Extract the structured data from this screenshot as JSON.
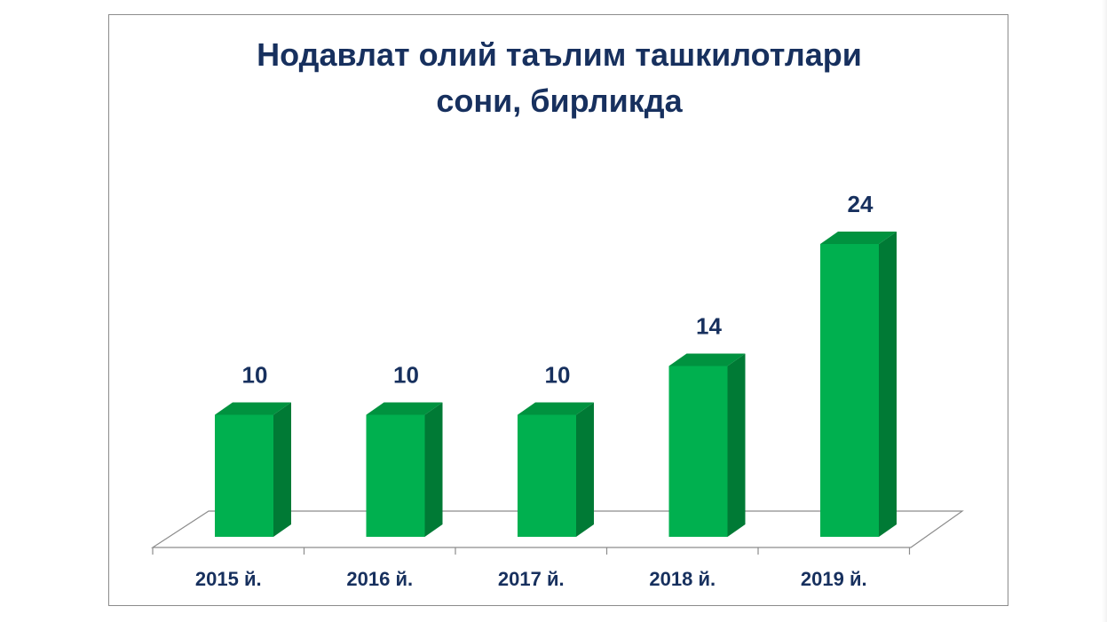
{
  "chart_data": {
    "type": "bar",
    "title_lines": [
      "Нодавлат олий таълим ташкилотлари",
      "сони, бирликда"
    ],
    "categories": [
      "2015 й.",
      "2016 й.",
      "2017 й.",
      "2018 й.",
      "2019 й."
    ],
    "values": [
      10,
      10,
      10,
      14,
      24
    ],
    "data_labels": [
      "10",
      "10",
      "10",
      "14",
      "24"
    ],
    "xlabel": "",
    "ylabel": "",
    "ylim": [
      0,
      26
    ],
    "grid": false,
    "legend": "none",
    "three_d": true,
    "colors": {
      "bar_front": "#00b04f",
      "bar_side": "#007a35",
      "bar_top": "#00923f",
      "text": "#17305e",
      "floor_line": "#8c8c8c"
    }
  }
}
